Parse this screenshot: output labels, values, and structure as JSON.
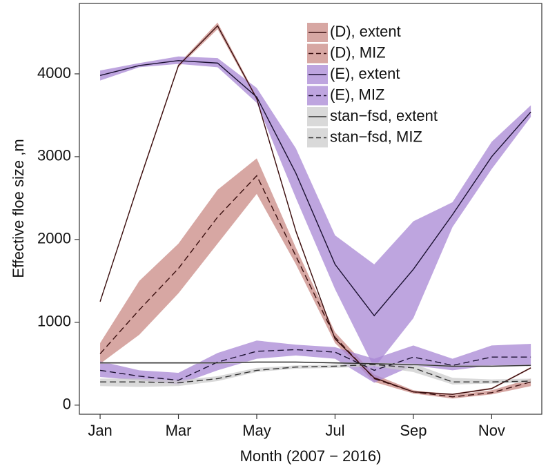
{
  "chart_data": {
    "type": "line",
    "x_label": "Month (2007 − 2016)",
    "y_label": "Effective floe size ,m",
    "x": [
      1,
      2,
      3,
      4,
      5,
      6,
      7,
      8,
      9,
      10,
      11,
      12
    ],
    "xlim": [
      0.47,
      12.28
    ],
    "xticks": [
      {
        "value": 1,
        "label": "Jan"
      },
      {
        "value": 3,
        "label": "Mar"
      },
      {
        "value": 5,
        "label": "May"
      },
      {
        "value": 7,
        "label": "Jul"
      },
      {
        "value": 9,
        "label": "Sep"
      },
      {
        "value": 11,
        "label": "Nov"
      }
    ],
    "ylim": [
      -110,
      4850
    ],
    "yticks": [
      0,
      1000,
      2000,
      3000,
      4000
    ],
    "series": [
      {
        "name": "(D), extent",
        "color": "#3a0f0f",
        "band_color": "#c98a84",
        "dash": false,
        "values": [
          1250,
          2700,
          4100,
          4580,
          3700,
          2100,
          800,
          330,
          160,
          130,
          200,
          450
        ],
        "lower": [
          1240,
          2680,
          4080,
          4540,
          3680,
          2080,
          790,
          320,
          150,
          120,
          190,
          440
        ],
        "upper": [
          1260,
          2720,
          4120,
          4620,
          3720,
          2120,
          810,
          340,
          170,
          140,
          210,
          460
        ]
      },
      {
        "name": "(D), MIZ",
        "color": "#3a0f0f",
        "band_color": "#c98a84",
        "dash": true,
        "values": [
          620,
          1150,
          1650,
          2270,
          2770,
          1800,
          820,
          320,
          160,
          100,
          150,
          280
        ],
        "lower": [
          500,
          850,
          1350,
          1950,
          2550,
          1700,
          750,
          280,
          140,
          80,
          130,
          230
        ],
        "upper": [
          750,
          1500,
          1950,
          2600,
          2980,
          1900,
          880,
          370,
          180,
          120,
          180,
          320
        ]
      },
      {
        "name": "(E), extent",
        "color": "#1a1030",
        "band_color": "#a887d4",
        "dash": false,
        "values": [
          3980,
          4100,
          4160,
          4130,
          3720,
          2800,
          1700,
          1080,
          1640,
          2300,
          3000,
          3540
        ],
        "lower": [
          3920,
          4080,
          4120,
          4080,
          3650,
          2500,
          1400,
          450,
          1050,
          2150,
          2850,
          3480
        ],
        "upper": [
          4040,
          4130,
          4210,
          4190,
          3830,
          3100,
          2050,
          1700,
          2220,
          2450,
          3180,
          3620
        ]
      },
      {
        "name": "(E), MIZ",
        "color": "#1a1030",
        "band_color": "#a887d4",
        "dash": true,
        "values": [
          420,
          350,
          300,
          520,
          650,
          670,
          640,
          420,
          580,
          480,
          580,
          580
        ],
        "lower": [
          340,
          300,
          250,
          420,
          560,
          600,
          560,
          270,
          480,
          420,
          480,
          470
        ],
        "upper": [
          530,
          420,
          390,
          630,
          780,
          730,
          700,
          560,
          720,
          560,
          720,
          740
        ]
      },
      {
        "name": "stan−fsd, extent",
        "color": "#333333",
        "band_color": "#cccccc",
        "dash": false,
        "values": [
          510,
          510,
          510,
          510,
          520,
          520,
          510,
          500,
          490,
          470,
          470,
          480
        ],
        "lower": [
          500,
          500,
          500,
          500,
          510,
          510,
          500,
          490,
          480,
          460,
          460,
          470
        ],
        "upper": [
          520,
          520,
          520,
          520,
          530,
          530,
          520,
          510,
          500,
          480,
          480,
          490
        ]
      },
      {
        "name": "stan−fsd, MIZ",
        "color": "#333333",
        "band_color": "#cccccc",
        "dash": true,
        "values": [
          280,
          280,
          270,
          320,
          420,
          460,
          470,
          490,
          450,
          280,
          280,
          290
        ],
        "lower": [
          230,
          220,
          230,
          290,
          400,
          440,
          450,
          470,
          400,
          250,
          260,
          270
        ],
        "upper": [
          320,
          320,
          300,
          350,
          450,
          480,
          490,
          510,
          500,
          330,
          310,
          320
        ]
      }
    ]
  }
}
